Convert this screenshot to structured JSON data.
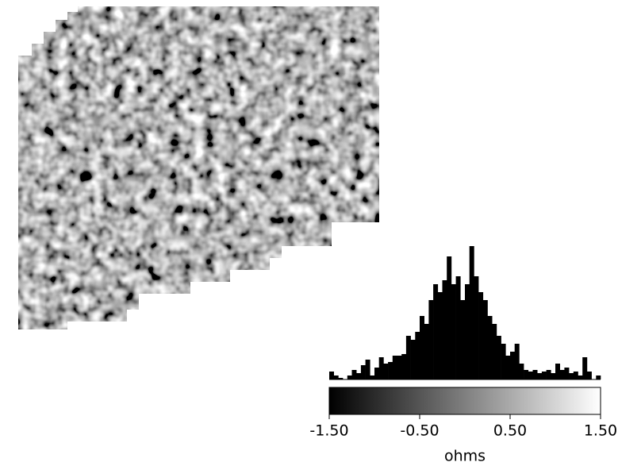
{
  "chart_data": {
    "type": "histogram",
    "x_label": "ohms",
    "bins": [
      -1.5,
      -1.45,
      -1.4,
      -1.35,
      -1.3,
      -1.25,
      -1.2,
      -1.15,
      -1.1,
      -1.05,
      -1.0,
      -0.95,
      -0.9,
      -0.85,
      -0.8,
      -0.75,
      -0.7,
      -0.65,
      -0.6,
      -0.55,
      -0.5,
      -0.45,
      -0.4,
      -0.35,
      -0.3,
      -0.25,
      -0.2,
      -0.15,
      -0.1,
      -0.05,
      0,
      0.05,
      0.1,
      0.15,
      0.2,
      0.25,
      0.3,
      0.35,
      0.4,
      0.45,
      0.5,
      0.55,
      0.6,
      0.65,
      0.7,
      0.75,
      0.8,
      0.85,
      0.9,
      0.95,
      1.0,
      1.05,
      1.1,
      1.15,
      1.2,
      1.25,
      1.3,
      1.35,
      1.4,
      1.45,
      1.5
    ],
    "values": [
      10,
      5,
      2,
      0,
      5,
      12,
      8,
      18,
      25,
      5,
      15,
      28,
      20,
      22,
      30,
      30,
      32,
      55,
      50,
      60,
      80,
      70,
      100,
      120,
      110,
      125,
      155,
      120,
      130,
      100,
      120,
      168,
      130,
      110,
      100,
      80,
      70,
      55,
      45,
      30,
      35,
      45,
      20,
      12,
      10,
      12,
      8,
      10,
      12,
      8,
      20,
      12,
      15,
      8,
      10,
      5,
      28,
      10,
      0,
      5
    ],
    "color": "#000000",
    "colormap": [
      "#000000",
      "#ffffff"
    ],
    "xlim": [
      -1.5,
      1.5
    ],
    "xticks": [
      {
        "value": -1.5,
        "label": "-1.50"
      },
      {
        "value": -0.5,
        "label": "-0.50"
      },
      {
        "value": 0.5,
        "label": "0.50"
      },
      {
        "value": 1.5,
        "label": "1.50"
      }
    ]
  }
}
